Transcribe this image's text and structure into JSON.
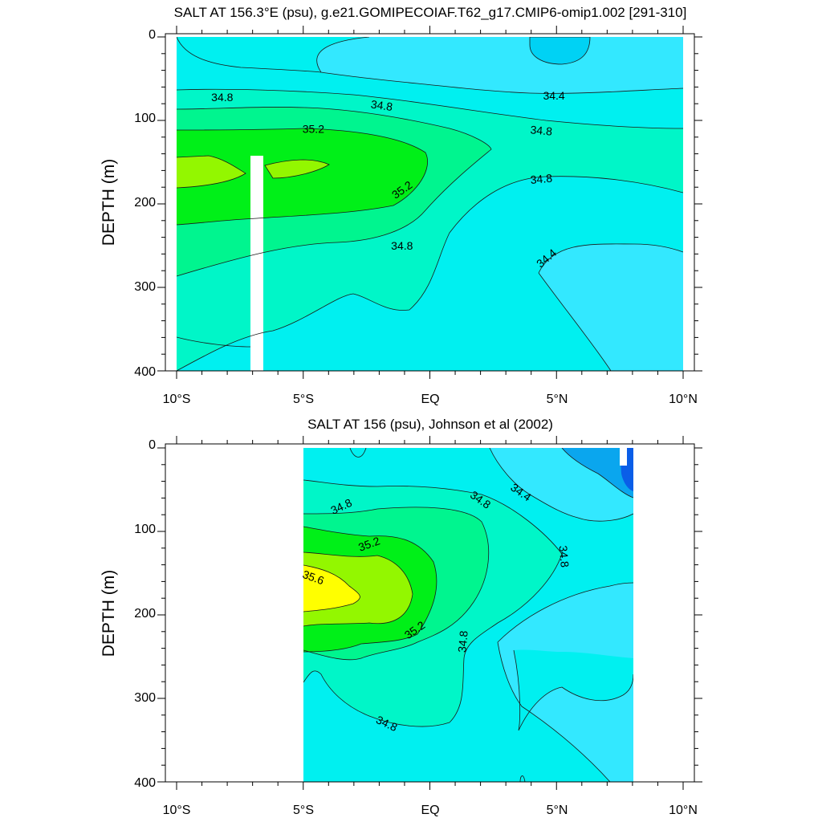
{
  "chart_data": [
    {
      "type": "heatmap",
      "title": "SALT AT 156.3°E (psu), g.e21.GOMIPECOIAF.T62_g17.CMIP6-omip1.002 [291-310]",
      "xlabel": "",
      "ylabel": "DEPTH (m)",
      "xlim": [
        -10,
        10
      ],
      "ylim": [
        400,
        0
      ],
      "x_ticks": [
        {
          "value": -10,
          "label": "10°S"
        },
        {
          "value": -5,
          "label": "5°S"
        },
        {
          "value": 0,
          "label": "EQ"
        },
        {
          "value": 5,
          "label": "5°N"
        },
        {
          "value": 10,
          "label": "10°N"
        }
      ],
      "y_ticks": [
        {
          "value": 0,
          "label": "0"
        },
        {
          "value": 100,
          "label": "100"
        },
        {
          "value": 200,
          "label": "200"
        },
        {
          "value": 300,
          "label": "300"
        },
        {
          "value": 400,
          "label": "400"
        }
      ],
      "contour_labels": [
        {
          "text": "34.8",
          "x": -8.2,
          "y": 72,
          "angle": 0
        },
        {
          "text": "34.8",
          "x": -1.9,
          "y": 82,
          "angle": 8
        },
        {
          "text": "34.4",
          "x": 4.9,
          "y": 70,
          "angle": 0
        },
        {
          "text": "35.2",
          "x": -4.6,
          "y": 110,
          "angle": 0
        },
        {
          "text": "34.8",
          "x": 4.4,
          "y": 112,
          "angle": 5
        },
        {
          "text": "35.2",
          "x": -1.1,
          "y": 183,
          "angle": -35
        },
        {
          "text": "34.8",
          "x": 4.4,
          "y": 170,
          "angle": -5
        },
        {
          "text": "34.8",
          "x": -1.1,
          "y": 250,
          "angle": 0
        },
        {
          "text": "34.4",
          "x": 4.6,
          "y": 265,
          "angle": -40
        }
      ],
      "missing_data": [
        {
          "x_range": [
            -7.2,
            -6.7
          ],
          "y_range": [
            145,
            400
          ]
        }
      ],
      "fill_levels": [
        {
          "upper_bound": 34.0,
          "color": "#00d2f4"
        },
        {
          "upper_bound": 34.4,
          "color": "#33e8ff"
        },
        {
          "upper_bound": 34.8,
          "color": "#00f0f0"
        },
        {
          "upper_bound": 35.0,
          "color": "#00f6c8"
        },
        {
          "upper_bound": 35.2,
          "color": "#00f58f"
        },
        {
          "upper_bound": 35.6,
          "color": "#00f018"
        },
        {
          "upper_bound": 36.0,
          "color": "#93f700"
        }
      ]
    },
    {
      "type": "heatmap",
      "title": "SALT AT 156 (psu), Johnson et al (2002)",
      "xlabel": "",
      "ylabel": "DEPTH (m)",
      "xlim": [
        -10,
        10
      ],
      "ylim": [
        400,
        0
      ],
      "data_extent_x": [
        -5,
        8
      ],
      "x_ticks": [
        {
          "value": -10,
          "label": "10°S"
        },
        {
          "value": -5,
          "label": "5°S"
        },
        {
          "value": 0,
          "label": "EQ"
        },
        {
          "value": 5,
          "label": "5°N"
        },
        {
          "value": 10,
          "label": "10°N"
        }
      ],
      "y_ticks": [
        {
          "value": 0,
          "label": "0"
        },
        {
          "value": 100,
          "label": "100"
        },
        {
          "value": 200,
          "label": "200"
        },
        {
          "value": 300,
          "label": "300"
        },
        {
          "value": 400,
          "label": "400"
        }
      ],
      "contour_labels": [
        {
          "text": "34.8",
          "x": -3.5,
          "y": 70,
          "angle": -25
        },
        {
          "text": "34.8",
          "x": 2.0,
          "y": 62,
          "angle": 35
        },
        {
          "text": "34.4",
          "x": 3.6,
          "y": 53,
          "angle": 35
        },
        {
          "text": "35.2",
          "x": -2.4,
          "y": 115,
          "angle": -20
        },
        {
          "text": "34.8",
          "x": 5.3,
          "y": 130,
          "angle": 85
        },
        {
          "text": "35.6",
          "x": -4.6,
          "y": 155,
          "angle": 20
        },
        {
          "text": "35.2",
          "x": -0.6,
          "y": 218,
          "angle": -35
        },
        {
          "text": "34.8",
          "x": 1.3,
          "y": 232,
          "angle": -85
        },
        {
          "text": "34.8",
          "x": -1.7,
          "y": 330,
          "angle": 25
        }
      ],
      "fill_levels": [
        {
          "upper_bound": 33.6,
          "color": "#0a5ee8"
        },
        {
          "upper_bound": 34.0,
          "color": "#0aa6ee"
        },
        {
          "upper_bound": 34.4,
          "color": "#33e8ff"
        },
        {
          "upper_bound": 34.8,
          "color": "#00f0f0"
        },
        {
          "upper_bound": 35.0,
          "color": "#00f6c8"
        },
        {
          "upper_bound": 35.2,
          "color": "#00f58f"
        },
        {
          "upper_bound": 35.4,
          "color": "#00f018"
        },
        {
          "upper_bound": 35.6,
          "color": "#93f700"
        },
        {
          "upper_bound": 36.0,
          "color": "#ffff00"
        }
      ]
    }
  ]
}
